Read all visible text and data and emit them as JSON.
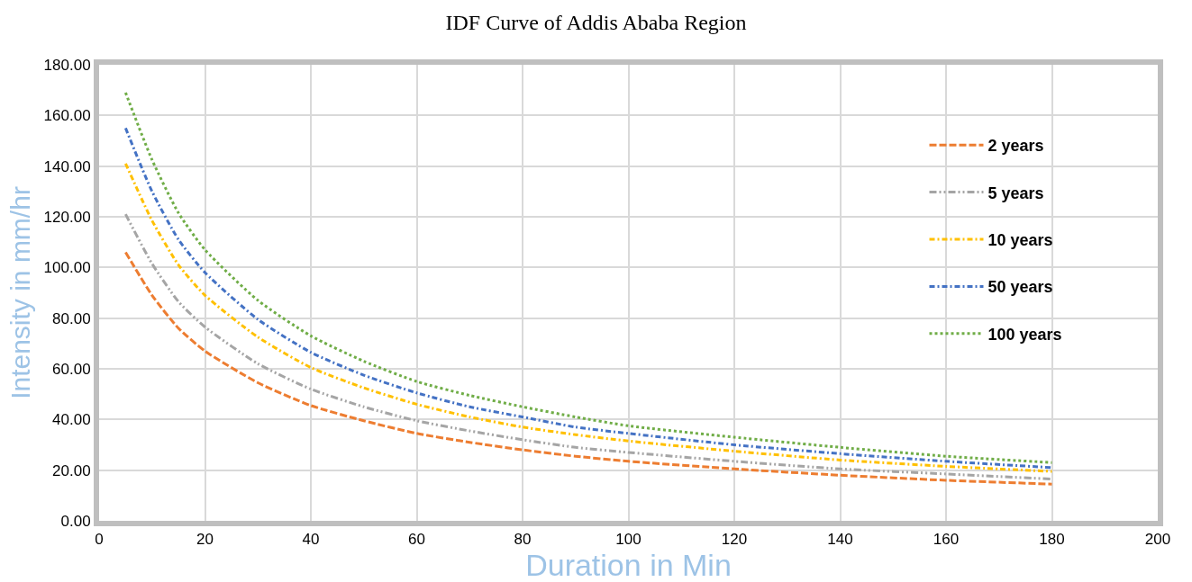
{
  "chart_data": {
    "type": "line",
    "title": "IDF Curve of Addis Ababa Region",
    "xlabel": "Duration in Min",
    "ylabel": "Intensity in mm/hr",
    "x": [
      5,
      10,
      15,
      20,
      30,
      40,
      50,
      60,
      70,
      80,
      90,
      100,
      120,
      140,
      160,
      180
    ],
    "series": [
      {
        "name": "2 years",
        "color": "#ed7d31",
        "line_style": "dashed",
        "values": [
          106,
          89,
          76,
          67,
          54.5,
          45.5,
          39.5,
          34.5,
          31,
          28,
          25.5,
          23.5,
          20.5,
          18,
          16,
          14.5
        ]
      },
      {
        "name": "5 years",
        "color": "#a5a5a5",
        "line_style": "dashed",
        "values": [
          121,
          101.5,
          86.5,
          76.5,
          62,
          52,
          45,
          39.5,
          35.5,
          32,
          29,
          27,
          23.5,
          20.5,
          18.5,
          16.5
        ]
      },
      {
        "name": "10 years",
        "color": "#ffc000",
        "line_style": "dashed",
        "values": [
          141,
          118.5,
          101,
          89,
          72.5,
          60.5,
          52.5,
          46,
          41,
          37,
          34,
          31.5,
          27.5,
          24,
          21.5,
          19.5
        ]
      },
      {
        "name": "50 years",
        "color": "#4472c4",
        "line_style": "dashed",
        "values": [
          155,
          130,
          111,
          98,
          79.5,
          66.5,
          57.5,
          50.5,
          45,
          41,
          37,
          34.5,
          30,
          26.5,
          23.5,
          21
        ]
      },
      {
        "name": "100 years",
        "color": "#70ad47",
        "line_style": "dotted",
        "values": [
          169,
          142.5,
          121.5,
          107,
          87,
          73,
          63,
          55,
          49.5,
          45,
          41,
          37.5,
          33,
          29,
          25.5,
          23
        ]
      }
    ],
    "xlim": [
      0,
      200
    ],
    "xticks": [
      0,
      20,
      40,
      60,
      80,
      100,
      120,
      140,
      160,
      180,
      200
    ],
    "ylim": [
      0,
      180
    ],
    "yticks": [
      {
        "value": 0,
        "label": "0.00"
      },
      {
        "value": 20,
        "label": "20.00"
      },
      {
        "value": 40,
        "label": "40.00"
      },
      {
        "value": 60,
        "label": "60.00"
      },
      {
        "value": 80,
        "label": "80.00"
      },
      {
        "value": 100,
        "label": "100.00"
      },
      {
        "value": 120,
        "label": "120.00"
      },
      {
        "value": 140,
        "label": "140.00"
      },
      {
        "value": 160,
        "label": "160.00"
      },
      {
        "value": 180,
        "label": "180.00"
      }
    ],
    "grid": true,
    "legend": "right",
    "marker": "none"
  }
}
